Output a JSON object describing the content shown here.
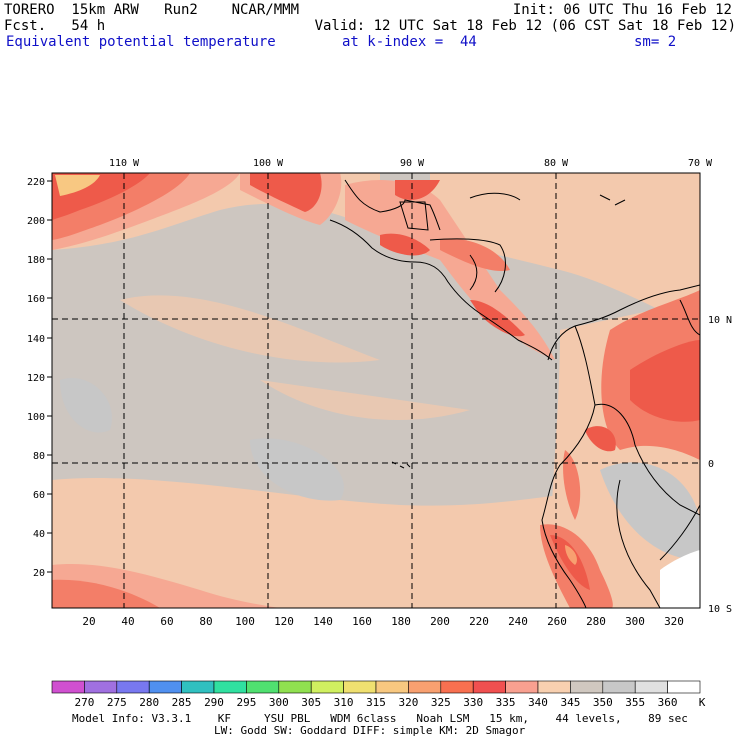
{
  "header": {
    "line1_left": "TORERO  15km ARW   Run2    NCAR/MMM",
    "line1_right": "Init: 06 UTC Thu 16 Feb 12",
    "line2_left": "Fcst.   54 h",
    "line2_right": "Valid: 12 UTC Sat 18 Feb 12 (06 CST Sat 18 Feb 12)",
    "line3_field": "Equivalent potential temperature",
    "line3_level": "at k-index =  44",
    "line3_smooth": "sm= 2"
  },
  "map": {
    "lon_labels": [
      "110 W",
      "100 W",
      "90 W",
      "80 W",
      "70 W"
    ],
    "lat_labels": [
      "10 N",
      "0",
      "10 S"
    ],
    "y_ticks": [
      "220",
      "200",
      "180",
      "160",
      "140",
      "120",
      "100",
      "80",
      "60",
      "40",
      "20"
    ],
    "x_ticks": [
      "20",
      "40",
      "60",
      "80",
      "100",
      "120",
      "140",
      "160",
      "180",
      "200",
      "220",
      "240",
      "260",
      "280",
      "300",
      "320"
    ]
  },
  "colorbar": {
    "labels": [
      "270",
      "275",
      "280",
      "285",
      "290",
      "295",
      "300",
      "305",
      "310",
      "315",
      "320",
      "325",
      "330",
      "335",
      "340",
      "345",
      "350",
      "355",
      "360"
    ],
    "unit": "K",
    "colors": [
      "#d050d0",
      "#a070e0",
      "#7878f0",
      "#5090f0",
      "#30c0c0",
      "#30e0a0",
      "#50e070",
      "#90e050",
      "#d0f060",
      "#f0e070",
      "#f8c880",
      "#f8a070",
      "#f87050",
      "#f05050",
      "#f8a090",
      "#f8d0b0",
      "#d0c8c0",
      "#c8c8c8",
      "#e0e0e0",
      "#ffffff"
    ]
  },
  "footer": {
    "line1": "Model Info: V3.3.1    KF     YSU PBL   WDM 6class   Noah LSM   15 km,    44 levels,    89 sec",
    "line2": "LW: Godd SW: Goddard DIFF: simple KM: 2D Smagor"
  }
}
